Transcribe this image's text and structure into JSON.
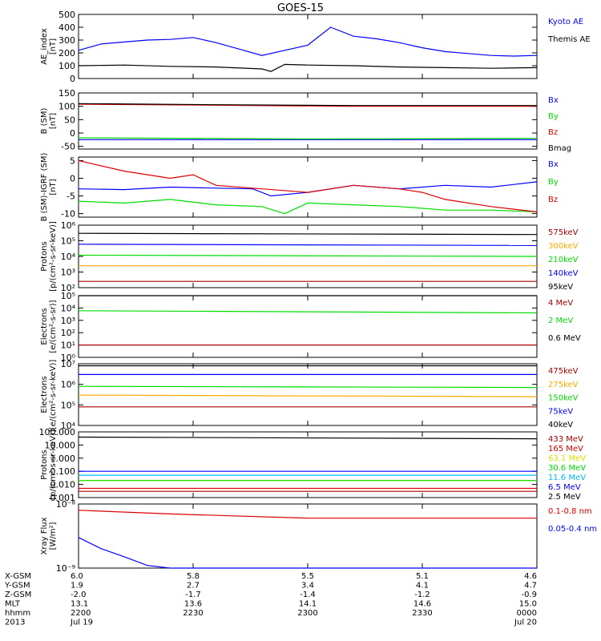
{
  "title": "GOES-15",
  "colors": {
    "black": "#000000",
    "blue": "#0000ff",
    "green": "#00dd00",
    "red": "#dd0000",
    "darkred": "#aa0000",
    "orange": "#ffaa00",
    "yellow": "#dddd00",
    "cyan": "#00bbff"
  },
  "chart_data": [
    {
      "type": "line",
      "id": "ae",
      "ylabel": "AE_index\n[nT]",
      "ylim": [
        0,
        500
      ],
      "scale": "linear",
      "ticks": [
        0,
        100,
        200,
        300,
        400,
        500
      ],
      "tick_labels": [
        "0",
        "100",
        "200",
        "300",
        "400",
        "500"
      ],
      "series": [
        {
          "name": "Kyoto AE",
          "color": "#0000ff",
          "x": [
            0,
            0.05,
            0.1,
            0.15,
            0.2,
            0.25,
            0.3,
            0.35,
            0.4,
            0.45,
            0.5,
            0.55,
            0.6,
            0.65,
            0.7,
            0.75,
            0.8,
            0.85,
            0.9,
            0.95,
            1.0
          ],
          "y": [
            220,
            270,
            285,
            300,
            305,
            320,
            280,
            230,
            180,
            220,
            260,
            400,
            330,
            310,
            280,
            240,
            210,
            195,
            180,
            175,
            180
          ]
        },
        {
          "name": "Themis AE",
          "color": "#000000",
          "x": [
            0,
            0.1,
            0.2,
            0.3,
            0.4,
            0.42,
            0.45,
            0.5,
            0.6,
            0.7,
            0.8,
            0.9,
            1.0
          ],
          "y": [
            100,
            105,
            95,
            90,
            75,
            55,
            110,
            105,
            100,
            90,
            85,
            80,
            85
          ]
        }
      ]
    },
    {
      "type": "line",
      "id": "bsm",
      "ylabel": "B (SM)\n[nT]",
      "ylim": [
        -60,
        150
      ],
      "scale": "linear",
      "ticks": [
        -50,
        0,
        50,
        100,
        150
      ],
      "tick_labels": [
        "-50",
        "0",
        "50",
        "100",
        "150"
      ],
      "series": [
        {
          "name": "Bx",
          "color": "#0000ff",
          "x": [
            0,
            0.5,
            1.0
          ],
          "y": [
            -25,
            -25,
            -25
          ]
        },
        {
          "name": "By",
          "color": "#00dd00",
          "x": [
            0,
            0.5,
            1.0
          ],
          "y": [
            -18,
            -22,
            -20
          ]
        },
        {
          "name": "Bz",
          "color": "#dd0000",
          "x": [
            0,
            0.3,
            0.6,
            1.0
          ],
          "y": [
            108,
            104,
            100,
            100
          ]
        },
        {
          "name": "Bmag",
          "color": "#000000",
          "x": [
            0,
            0.3,
            0.6,
            1.0
          ],
          "y": [
            110,
            106,
            103,
            103
          ]
        }
      ]
    },
    {
      "type": "line",
      "id": "bigrf",
      "ylabel": "B (SM)-IGRF (SM)\n[nT]",
      "ylim": [
        -11,
        6
      ],
      "scale": "linear",
      "ticks": [
        -10,
        -5,
        0,
        5
      ],
      "tick_labels": [
        "-10",
        "-5",
        "0",
        "5"
      ],
      "series": [
        {
          "name": "Bx",
          "color": "#0000ff",
          "x": [
            0,
            0.1,
            0.2,
            0.3,
            0.38,
            0.42,
            0.5,
            0.6,
            0.7,
            0.8,
            0.9,
            1.0
          ],
          "y": [
            -3,
            -3.2,
            -2.5,
            -2.8,
            -3,
            -5,
            -4,
            -2,
            -3,
            -2,
            -2.5,
            -1
          ]
        },
        {
          "name": "By",
          "color": "#00dd00",
          "x": [
            0,
            0.1,
            0.2,
            0.3,
            0.4,
            0.45,
            0.5,
            0.6,
            0.7,
            0.8,
            0.9,
            1.0
          ],
          "y": [
            -6.5,
            -7,
            -6,
            -7.5,
            -8,
            -10,
            -7,
            -7.5,
            -8,
            -9,
            -9,
            -9.5
          ]
        },
        {
          "name": "Bz",
          "color": "#dd0000",
          "x": [
            0,
            0.1,
            0.2,
            0.25,
            0.3,
            0.4,
            0.5,
            0.6,
            0.7,
            0.75,
            0.8,
            0.9,
            1.0
          ],
          "y": [
            5,
            2,
            0,
            1,
            -2,
            -3,
            -4,
            -2,
            -3,
            -4,
            -6,
            -8,
            -9.5
          ]
        }
      ]
    },
    {
      "type": "line",
      "id": "protons1",
      "ylabel": "Protons\n[p/(cm²-s-sr-keV)]",
      "ylim": [
        100,
        1000000
      ],
      "scale": "log",
      "ticks": [
        100,
        1000,
        10000,
        100000,
        1000000
      ],
      "tick_labels": [
        "10²",
        "10³",
        "10⁴",
        "10⁵",
        "10⁶"
      ],
      "series": [
        {
          "name": "575keV",
          "color": "#aa0000",
          "x": [
            0,
            1
          ],
          "y": [
            250,
            250
          ]
        },
        {
          "name": "300keV",
          "color": "#ffaa00",
          "x": [
            0,
            1
          ],
          "y": [
            2500,
            2500
          ]
        },
        {
          "name": "210keV",
          "color": "#00dd00",
          "x": [
            0,
            1
          ],
          "y": [
            12000,
            10000
          ]
        },
        {
          "name": "140keV",
          "color": "#0000ff",
          "x": [
            0,
            1
          ],
          "y": [
            60000,
            50000
          ]
        },
        {
          "name": "95keV",
          "color": "#000000",
          "x": [
            0,
            1
          ],
          "y": [
            300000,
            250000
          ]
        }
      ]
    },
    {
      "type": "line",
      "id": "electrons1",
      "ylabel": "Electrons\n[e/(cm²-s-sr)]",
      "ylim": [
        1,
        100000
      ],
      "scale": "log",
      "ticks": [
        1,
        10,
        100,
        1000,
        10000,
        100000
      ],
      "tick_labels": [
        "10⁰",
        "10¹",
        "10²",
        "10³",
        "10⁴",
        "10⁵"
      ],
      "series": [
        {
          "name": "4 MeV",
          "color": "#aa0000",
          "x": [
            0,
            1
          ],
          "y": [
            10,
            10
          ]
        },
        {
          "name": "2 MeV",
          "color": "#00dd00",
          "x": [
            0,
            1
          ],
          "y": [
            6000,
            4000
          ]
        },
        {
          "name": "0.6 MeV",
          "color": "#000000",
          "x": [
            0,
            1
          ],
          "y": [
            100000,
            100000
          ]
        }
      ]
    },
    {
      "type": "line",
      "id": "electrons2",
      "ylabel": "Electrons\n[e/(cm²-s-sr-keV)]",
      "ylim": [
        10000,
        10000000
      ],
      "scale": "log",
      "ticks": [
        10000,
        100000,
        1000000,
        10000000
      ],
      "tick_labels": [
        "10⁴",
        "10⁵",
        "10⁶",
        "10⁷"
      ],
      "series": [
        {
          "name": "475keV",
          "color": "#aa0000",
          "x": [
            0,
            1
          ],
          "y": [
            80000,
            80000
          ]
        },
        {
          "name": "275keV",
          "color": "#ffaa00",
          "x": [
            0,
            1
          ],
          "y": [
            300000,
            250000
          ]
        },
        {
          "name": "150keV",
          "color": "#00dd00",
          "x": [
            0,
            1
          ],
          "y": [
            800000,
            700000
          ]
        },
        {
          "name": "75keV",
          "color": "#0000ff",
          "x": [
            0,
            1
          ],
          "y": [
            3000000,
            3000000
          ]
        },
        {
          "name": "40keV",
          "color": "#000000",
          "x": [
            0,
            1
          ],
          "y": [
            8000000,
            8000000
          ]
        }
      ]
    },
    {
      "type": "line",
      "id": "protons2",
      "ylabel": "Protons\n[p/(cm²-s-sr-keV)]",
      "ylim": [
        0.001,
        100
      ],
      "scale": "log",
      "ticks": [
        0.001,
        0.01,
        0.1,
        1.0,
        10.0,
        100.0
      ],
      "tick_labels": [
        "0.001",
        "0.010",
        "0.100",
        "1.000",
        "10.000",
        "100.000"
      ],
      "series": [
        {
          "name": "433 MeV",
          "color": "#aa0000",
          "x": [
            0,
            1
          ],
          "y": [
            0.003,
            0.003
          ]
        },
        {
          "name": "165 MeV",
          "color": "#dd0000",
          "x": [
            0,
            1
          ],
          "y": [
            0.005,
            0.005
          ]
        },
        {
          "name": "63.1 MeV",
          "color": "#dddd00",
          "x": [
            0,
            1
          ],
          "y": [
            0.02,
            0.02
          ]
        },
        {
          "name": "30.6 MeV",
          "color": "#00dd00",
          "x": [
            0,
            1
          ],
          "y": [
            0.02,
            0.02
          ]
        },
        {
          "name": "11.6 MeV",
          "color": "#00bbff",
          "x": [
            0,
            1
          ],
          "y": [
            0.05,
            0.05
          ]
        },
        {
          "name": "6.5 MeV",
          "color": "#0000ff",
          "x": [
            0,
            1
          ],
          "y": [
            0.1,
            0.1
          ]
        },
        {
          "name": "2.5 MeV",
          "color": "#000000",
          "x": [
            0,
            1
          ],
          "y": [
            40,
            30
          ]
        }
      ]
    },
    {
      "type": "line",
      "id": "xray",
      "ylabel": "Xray Flux\n[W/m²]",
      "ylim": [
        1e-09,
        1e-08
      ],
      "scale": "log",
      "ticks": [
        1e-09,
        1e-08
      ],
      "tick_labels": [
        "10⁻⁹",
        "10⁻⁸"
      ],
      "series": [
        {
          "name": "0.1-0.8 nm",
          "color": "#dd0000",
          "x": [
            0,
            0.2,
            0.5,
            1.0
          ],
          "y": [
            8e-09,
            7e-09,
            6e-09,
            6e-09
          ]
        },
        {
          "name": "0.05-0.4 nm",
          "color": "#0000ff",
          "x": [
            0,
            0.05,
            0.1,
            0.15,
            0.2,
            1.0
          ],
          "y": [
            3e-09,
            2e-09,
            1.5e-09,
            1.1e-09,
            1e-09,
            1e-09
          ]
        }
      ]
    }
  ],
  "orbit": {
    "labels": [
      "X-GSM",
      "Y-GSM",
      "Z-GSM",
      "MLT",
      "hhmm",
      "2013"
    ],
    "columns": [
      [
        "6.0",
        "1.9",
        "-2.0",
        "13.1",
        "2200",
        "Jul 19"
      ],
      [
        "5.8",
        "2.7",
        "-1.7",
        "13.6",
        "2230",
        ""
      ],
      [
        "5.5",
        "3.4",
        "-1.4",
        "14.1",
        "2300",
        ""
      ],
      [
        "5.1",
        "4.1",
        "-1.2",
        "14.6",
        "2330",
        ""
      ],
      [
        "4.6",
        "4.7",
        "-0.9",
        "15.0",
        "0000",
        "Jul 20"
      ]
    ]
  }
}
